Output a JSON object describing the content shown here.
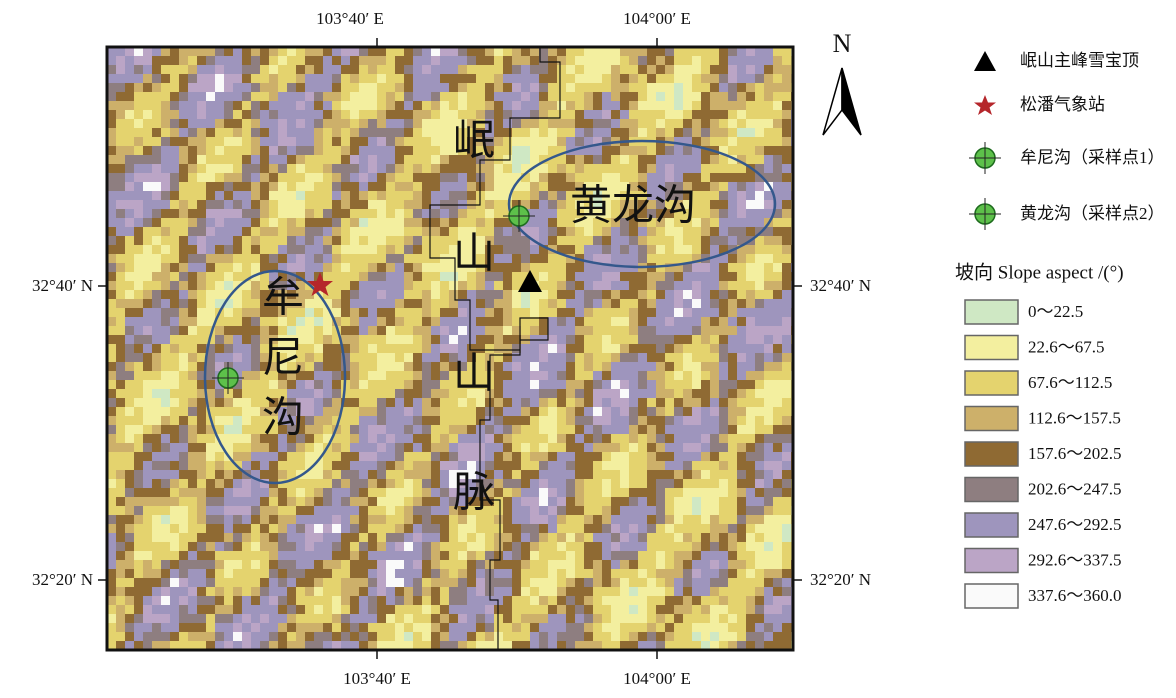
{
  "map": {
    "top_ticks": [
      "103°40′ E",
      "104°00′ E"
    ],
    "bottom_ticks": [
      "103°40′ E",
      "104°00′ E"
    ],
    "left_ticks": [
      "32°40′ N",
      "32°20′ N"
    ],
    "right_ticks": [
      "32°40′ N",
      "32°20′ N"
    ],
    "north": "N",
    "mountain_label": [
      "岷",
      "山",
      "山",
      "脉"
    ],
    "huanglonggou_label": "黄龙沟",
    "mounigou_label": [
      "牟",
      "尼",
      "沟"
    ]
  },
  "legend": {
    "symbols": [
      "岷山主峰雪宝顶",
      "松潘气象站",
      "牟尼沟（采样点1）",
      "黄龙沟（采样点2）"
    ],
    "title": "坡向 Slope aspect /(°)",
    "classes": [
      {
        "label": "0～22.5",
        "color": "#cfe8c4"
      },
      {
        "label": "22.6～67.5",
        "color": "#f3ef9f"
      },
      {
        "label": "67.6～112.5",
        "color": "#e4d36e"
      },
      {
        "label": "112.6～157.5",
        "color": "#cdb06a"
      },
      {
        "label": "157.6～202.5",
        "color": "#8f6a33"
      },
      {
        "label": "202.6～247.5",
        "color": "#8e7e80"
      },
      {
        "label": "247.6～292.5",
        "color": "#9e95bd"
      },
      {
        "label": "292.6～337.5",
        "color": "#bba5c6"
      },
      {
        "label": "337.6～360.0",
        "color": "#fafafa"
      }
    ]
  }
}
